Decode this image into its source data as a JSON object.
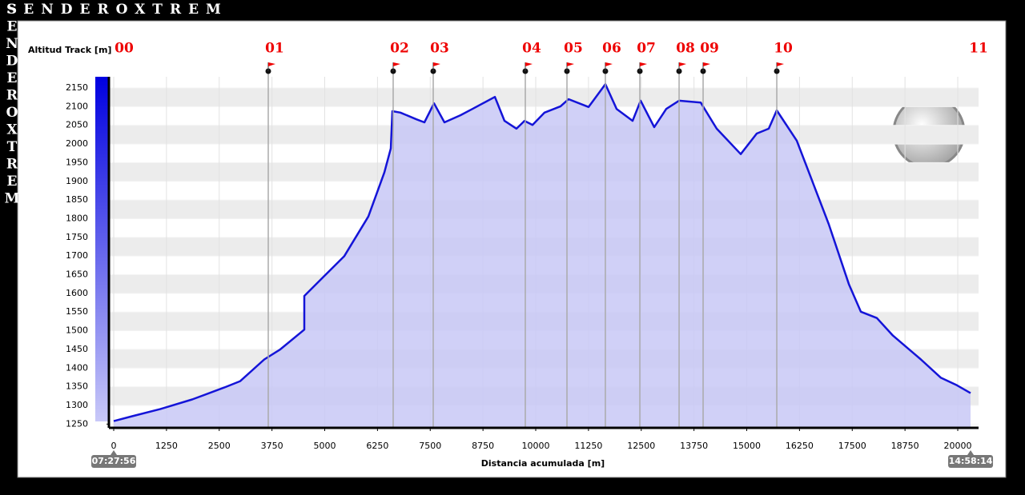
{
  "brand": "SENDEROXTREM",
  "chart_data": {
    "type": "area",
    "ylabel": "Altitud Track [m]",
    "xlabel": "Distancia acumulada [m]",
    "start_time": "07:27:56",
    "end_time": "14:58:14",
    "x": [
      0,
      436,
      1100,
      1860,
      2619,
      2998,
      3567,
      3947,
      4516,
      4516,
      4896,
      5465,
      6034,
      6413,
      6565,
      6603,
      6793,
      7173,
      7362,
      7590,
      7837,
      8216,
      8501,
      9032,
      9260,
      9545,
      9734,
      9924,
      10209,
      10588,
      10778,
      11252,
      11651,
      11917,
      12296,
      12486,
      12808,
      13093,
      13397,
      13909,
      14288,
      14858,
      15237,
      15522,
      15712,
      16186,
      16945,
      17419,
      17704,
      18083,
      18463,
      19127,
      19602,
      19981,
      20304
    ],
    "series": [
      {
        "name": "Altitud Track",
        "color": "#1414d8",
        "fill": "#c8c8f6",
        "values": [
          1258,
          1271,
          1290,
          1316,
          1348,
          1365,
          1423,
          1450,
          1503,
          1593,
          1636,
          1700,
          1806,
          1924,
          1988,
          2088,
          2084,
          2066,
          2058,
          2109,
          2058,
          2077,
          2094,
          2126,
          2062,
          2041,
          2062,
          2051,
          2084,
          2101,
          2120,
          2099,
          2160,
          2094,
          2062,
          2116,
          2045,
          2094,
          2116,
          2111,
          2041,
          1973,
          2028,
          2041,
          2090,
          2009,
          1785,
          1625,
          1551,
          1534,
          1487,
          1423,
          1374,
          1354,
          1333
        ]
      }
    ],
    "waypoints": [
      {
        "label": "00",
        "x": 0
      },
      {
        "label": "01",
        "x": 3662
      },
      {
        "label": "02",
        "x": 6622
      },
      {
        "label": "03",
        "x": 7571
      },
      {
        "label": "04",
        "x": 9753
      },
      {
        "label": "05",
        "x": 10740
      },
      {
        "label": "06",
        "x": 11650
      },
      {
        "label": "07",
        "x": 12467
      },
      {
        "label": "08",
        "x": 13397
      },
      {
        "label": "09",
        "x": 13966
      },
      {
        "label": "10",
        "x": 15712
      },
      {
        "label": "11",
        "x": 20304
      }
    ],
    "xlim": [
      -114,
      20493
    ],
    "ylim": [
      1240,
      2180
    ],
    "xticks": [
      0,
      1250,
      2500,
      3750,
      5000,
      6250,
      7500,
      8750,
      10000,
      11250,
      12500,
      13750,
      15000,
      16250,
      17500,
      18750,
      20000
    ],
    "yticks": [
      1250,
      1300,
      1350,
      1400,
      1450,
      1500,
      1550,
      1600,
      1650,
      1700,
      1750,
      1800,
      1850,
      1900,
      1950,
      2000,
      2050,
      2100,
      2150
    ],
    "grid": true
  }
}
